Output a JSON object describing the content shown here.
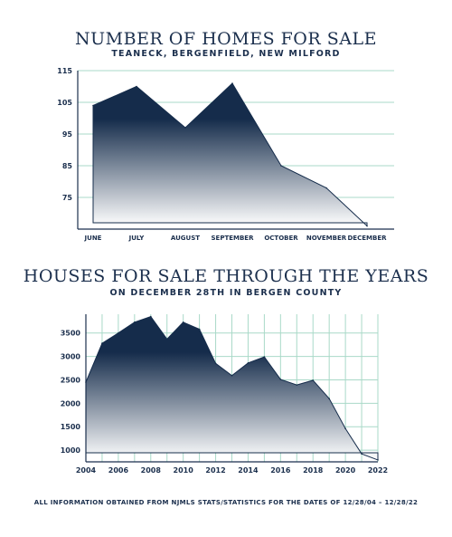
{
  "chart_data": [
    {
      "type": "area",
      "title": "NUMBER OF HOMES FOR SALE",
      "subtitle": "TEANECK, BERGENFIELD, NEW MILFORD",
      "categories": [
        "JUNE",
        "JULY",
        "AUGUST",
        "SEPTEMBER",
        "OCTOBER",
        "NOVEMBER",
        "DECEMBER"
      ],
      "values": [
        104,
        110,
        97,
        111,
        85,
        78,
        66
      ],
      "yticks": [
        75,
        85,
        95,
        105,
        115
      ],
      "ylim": [
        65,
        115
      ],
      "grid": true,
      "colors": {
        "fill_top": "#152c4b",
        "fill_bottom": "#ffffff",
        "grid": "#a9d9c8",
        "axis": "#1b2f4d"
      }
    },
    {
      "type": "area",
      "title": "HOUSES FOR SALE THROUGH THE YEARS",
      "subtitle": "ON DECEMBER 28TH IN BERGEN COUNTY",
      "x": [
        2004,
        2005,
        2006,
        2007,
        2008,
        2009,
        2010,
        2011,
        2012,
        2013,
        2014,
        2015,
        2016,
        2017,
        2018,
        2019,
        2020,
        2021,
        2022
      ],
      "values": [
        2450,
        3280,
        3500,
        3730,
        3850,
        3370,
        3730,
        3580,
        2850,
        2590,
        2860,
        2990,
        2510,
        2390,
        2490,
        2100,
        1460,
        920,
        790
      ],
      "xticks": [
        2004,
        2006,
        2008,
        2010,
        2012,
        2014,
        2016,
        2018,
        2020,
        2022
      ],
      "yticks": [
        1000,
        1500,
        2000,
        2500,
        3000,
        3500
      ],
      "ylim": [
        750,
        3900
      ],
      "grid": true,
      "colors": {
        "fill_top": "#152c4b",
        "fill_bottom": "#ffffff",
        "grid": "#a9d9c8",
        "axis": "#1b2f4d"
      }
    }
  ],
  "footnote": "ALL INFORMATION OBTAINED FROM NJMLS STATS/STATISTICS FOR THE DATES OF 12/28/04 – 12/28/22"
}
